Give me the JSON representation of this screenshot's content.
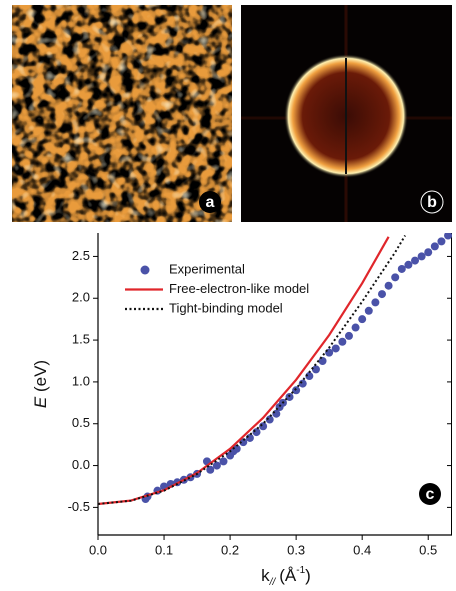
{
  "panel_labels": {
    "a": "a",
    "b": "b"
  },
  "chart_data": {
    "type": "scatter-line",
    "panel_label": "c",
    "x_label": {
      "symbol": "k",
      "subscript": "//",
      "unit_open": "(Å",
      "superscript": "-1",
      "unit_close": ")"
    },
    "y_label": {
      "symbol": "E",
      "unit": "(eV)"
    },
    "xlim": [
      0,
      0.536
    ],
    "ylim": [
      -0.83,
      2.78
    ],
    "xticks": [
      {
        "value": 0,
        "label": "0.0"
      },
      0.1,
      0.2,
      0.3,
      0.4,
      0.5
    ],
    "yticks": [
      -0.5,
      {
        "value": 0,
        "label": "0.0"
      },
      0.5,
      {
        "value": 1,
        "label": "1.0"
      },
      1.5,
      {
        "value": 2,
        "label": "2.0"
      },
      2.5
    ],
    "legend": "top-left",
    "series": [
      {
        "name": "Experimental",
        "style": "dots",
        "color": "#4a52a8",
        "x": [
          0.072,
          0.075,
          0.09,
          0.1,
          0.11,
          0.12,
          0.13,
          0.14,
          0.15,
          0.165,
          0.17,
          0.18,
          0.19,
          0.2,
          0.205,
          0.21,
          0.22,
          0.23,
          0.24,
          0.25,
          0.26,
          0.27,
          0.275,
          0.28,
          0.29,
          0.3,
          0.31,
          0.32,
          0.33,
          0.34,
          0.35,
          0.36,
          0.37,
          0.38,
          0.39,
          0.4,
          0.41,
          0.42,
          0.43,
          0.44,
          0.45,
          0.46,
          0.47,
          0.48,
          0.49,
          0.5,
          0.51,
          0.52,
          0.53
        ],
        "values": [
          -0.4,
          -0.37,
          -0.3,
          -0.25,
          -0.22,
          -0.2,
          -0.17,
          -0.14,
          -0.1,
          0.05,
          -0.05,
          0.0,
          0.05,
          0.12,
          0.17,
          0.2,
          0.28,
          0.33,
          0.4,
          0.47,
          0.55,
          0.62,
          0.7,
          0.75,
          0.82,
          0.9,
          0.98,
          1.07,
          1.15,
          1.25,
          1.35,
          1.4,
          1.48,
          1.55,
          1.65,
          1.75,
          1.85,
          1.95,
          2.05,
          2.15,
          2.25,
          2.35,
          2.4,
          2.45,
          2.5,
          2.55,
          2.62,
          2.68,
          2.75
        ]
      },
      {
        "name": "Free-electron-like model",
        "style": "solid",
        "color": "#e0262b",
        "x": [
          0,
          0.05,
          0.1,
          0.15,
          0.2,
          0.25,
          0.3,
          0.35,
          0.4,
          0.44
        ],
        "values": [
          -0.46,
          -0.419,
          -0.295,
          -0.089,
          0.2,
          0.571,
          1.025,
          1.561,
          2.18,
          2.734
        ]
      },
      {
        "name": "Tight-binding model",
        "style": "dotted",
        "color": "#111111",
        "x": [
          0,
          0.05,
          0.1,
          0.15,
          0.2,
          0.25,
          0.3,
          0.35,
          0.4,
          0.45,
          0.465
        ],
        "values": [
          -0.46,
          -0.42,
          -0.3,
          -0.1,
          0.17,
          0.5,
          0.92,
          1.41,
          1.96,
          2.55,
          2.75
        ]
      }
    ]
  }
}
